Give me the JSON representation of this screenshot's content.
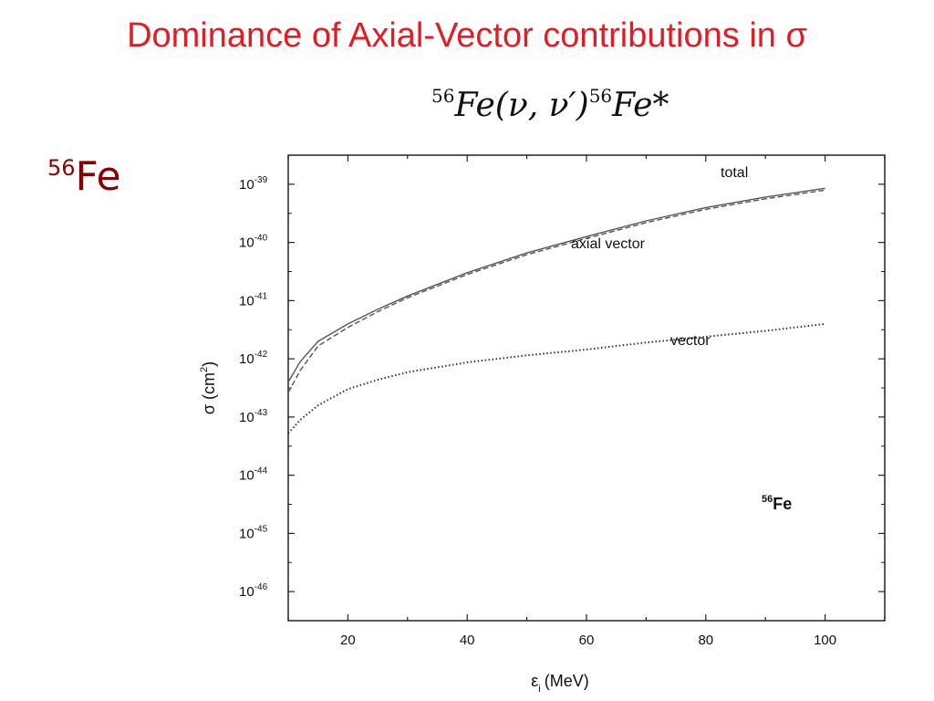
{
  "slide": {
    "title": "Dominance of Axial-Vector contributions in σ",
    "reaction": {
      "target_mass": "56",
      "target": "Fe",
      "process": "(ν, ν′)",
      "product_mass": "56",
      "product": "Fe*"
    },
    "side_label": {
      "mass": "56",
      "element": "Fe"
    }
  },
  "chart_data": {
    "type": "line",
    "xlabel_symbol": "ε",
    "xlabel_subscript": "i",
    "xlabel_unit": "(MeV)",
    "ylabel_text": "σ (cm",
    "ylabel_sup": "2",
    "ylabel_close": ")",
    "xlim": [
      10,
      110
    ],
    "ylim_exponent": [
      -46.5,
      -38.5
    ],
    "log_y": true,
    "x_ticks": [
      20,
      40,
      60,
      80,
      100
    ],
    "y_ticks": [
      {
        "base": "10",
        "exp": "-39",
        "value": -39
      },
      {
        "base": "10",
        "exp": "-40",
        "value": -40
      },
      {
        "base": "10",
        "exp": "-41",
        "value": -41
      },
      {
        "base": "10",
        "exp": "-42",
        "value": -42
      },
      {
        "base": "10",
        "exp": "-43",
        "value": -43
      },
      {
        "base": "10",
        "exp": "-44",
        "value": -44
      },
      {
        "base": "10",
        "exp": "-45",
        "value": -45
      },
      {
        "base": "10",
        "exp": "-46",
        "value": -46
      }
    ],
    "annotation": {
      "mass": "56",
      "element": "Fe"
    },
    "series": [
      {
        "name": "total",
        "style": "solid",
        "color": "#555555",
        "x": [
          10,
          12,
          15,
          20,
          25,
          30,
          40,
          50,
          60,
          70,
          80,
          90,
          100
        ],
        "log10_sigma": [
          -42.4,
          -42.05,
          -41.7,
          -41.4,
          -41.15,
          -40.92,
          -40.52,
          -40.18,
          -39.9,
          -39.63,
          -39.4,
          -39.22,
          -39.07
        ]
      },
      {
        "name": "axial vector",
        "style": "dashed",
        "color": "#555555",
        "x": [
          10,
          12,
          15,
          20,
          25,
          30,
          40,
          50,
          60,
          70,
          80,
          90,
          100
        ],
        "log10_sigma": [
          -42.58,
          -42.2,
          -41.78,
          -41.46,
          -41.19,
          -40.95,
          -40.55,
          -40.21,
          -39.93,
          -39.66,
          -39.43,
          -39.25,
          -39.1
        ]
      },
      {
        "name": "vector",
        "style": "dotted",
        "color": "#333333",
        "x": [
          10,
          12,
          15,
          20,
          25,
          30,
          40,
          50,
          60,
          70,
          80,
          90,
          100
        ],
        "log10_sigma": [
          -43.28,
          -43.05,
          -42.8,
          -42.52,
          -42.36,
          -42.23,
          -42.06,
          -41.94,
          -41.84,
          -41.72,
          -41.62,
          -41.52,
          -41.4
        ]
      }
    ],
    "curve_labels": [
      "total",
      "axial vector",
      "vector"
    ]
  }
}
